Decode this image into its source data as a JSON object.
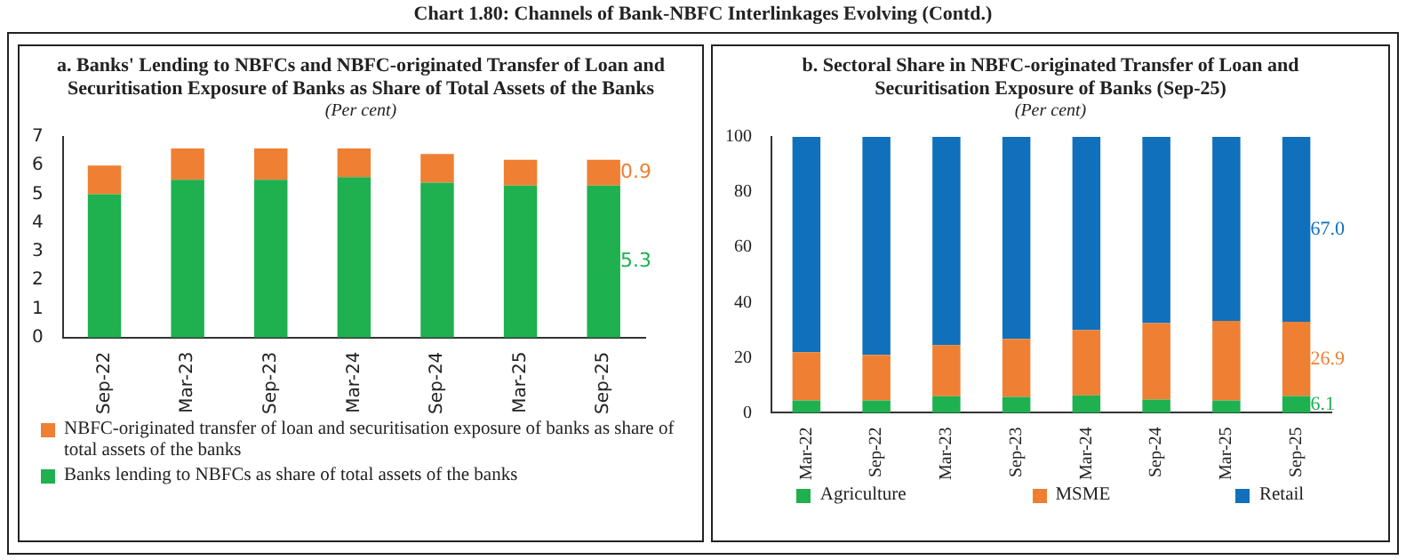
{
  "chart_data": [
    {
      "type": "bar",
      "title": "a. Banks' Lending to NBFCs and NBFC-originated Transfer of Loan and Securitisation Exposure of Banks as Share of Total Assets of the Banks",
      "subtitle": "(Per cent)",
      "annotations": [
        "Chart 1.80: Channels of Bank-NBFC Interlinkages Evolving (Contd.)"
      ],
      "categories": [
        "Sep-22",
        "Mar-23",
        "Sep-23",
        "Mar-24",
        "Sep-24",
        "Mar-25",
        "Sep-25"
      ],
      "stacked": true,
      "series": [
        {
          "name": "Banks lending to NBFCs as share of total assets of the banks",
          "color": "#1fb050",
          "values": [
            5.0,
            5.5,
            5.5,
            5.6,
            5.4,
            5.3,
            5.3
          ],
          "value_labels": [
            null,
            null,
            null,
            null,
            null,
            null,
            "5.3"
          ]
        },
        {
          "name": "NBFC-originated transfer of loan and securitisation exposure of banks as share of total assets of the banks",
          "color": "#ef7f32",
          "values": [
            1.0,
            1.1,
            1.1,
            1.0,
            1.0,
            0.9,
            0.9
          ],
          "value_labels": [
            null,
            null,
            null,
            null,
            null,
            null,
            "0.9"
          ]
        }
      ],
      "ylim": [
        0,
        7
      ],
      "yticks": [
        0,
        1,
        2,
        3,
        4,
        5,
        6,
        7
      ],
      "grid": false,
      "legend": "bottom"
    },
    {
      "type": "bar",
      "title": "b. Sectoral Share in NBFC-originated Transfer of Loan and Securitisation Exposure of Banks (Sep-25)",
      "subtitle": "(Per cent)",
      "categories": [
        "Mar-22",
        "Sep-22",
        "Mar-23",
        "Sep-23",
        "Mar-24",
        "Sep-24",
        "Mar-25",
        "Sep-25"
      ],
      "stacked": true,
      "series": [
        {
          "name": "Agriculture",
          "color": "#1fb050",
          "values": [
            4.5,
            4.5,
            6.0,
            5.8,
            6.3,
            4.8,
            4.5,
            6.1
          ],
          "value_labels": [
            null,
            null,
            null,
            null,
            null,
            null,
            null,
            "6.1"
          ]
        },
        {
          "name": "MSME",
          "color": "#ef7f32",
          "values": [
            17.5,
            16.5,
            18.5,
            21.0,
            23.7,
            27.7,
            28.8,
            26.9
          ],
          "value_labels": [
            null,
            null,
            null,
            null,
            null,
            null,
            null,
            "26.9"
          ]
        },
        {
          "name": "Retail",
          "color": "#1070bb",
          "values": [
            78.0,
            79.0,
            75.5,
            73.2,
            70.0,
            67.5,
            66.7,
            67.0
          ],
          "value_labels": [
            null,
            null,
            null,
            null,
            null,
            null,
            null,
            "67.0"
          ]
        }
      ],
      "ylim": [
        0,
        100
      ],
      "yticks": [
        0,
        20,
        40,
        60,
        80,
        100
      ],
      "grid": false,
      "legend": "bottom"
    }
  ]
}
